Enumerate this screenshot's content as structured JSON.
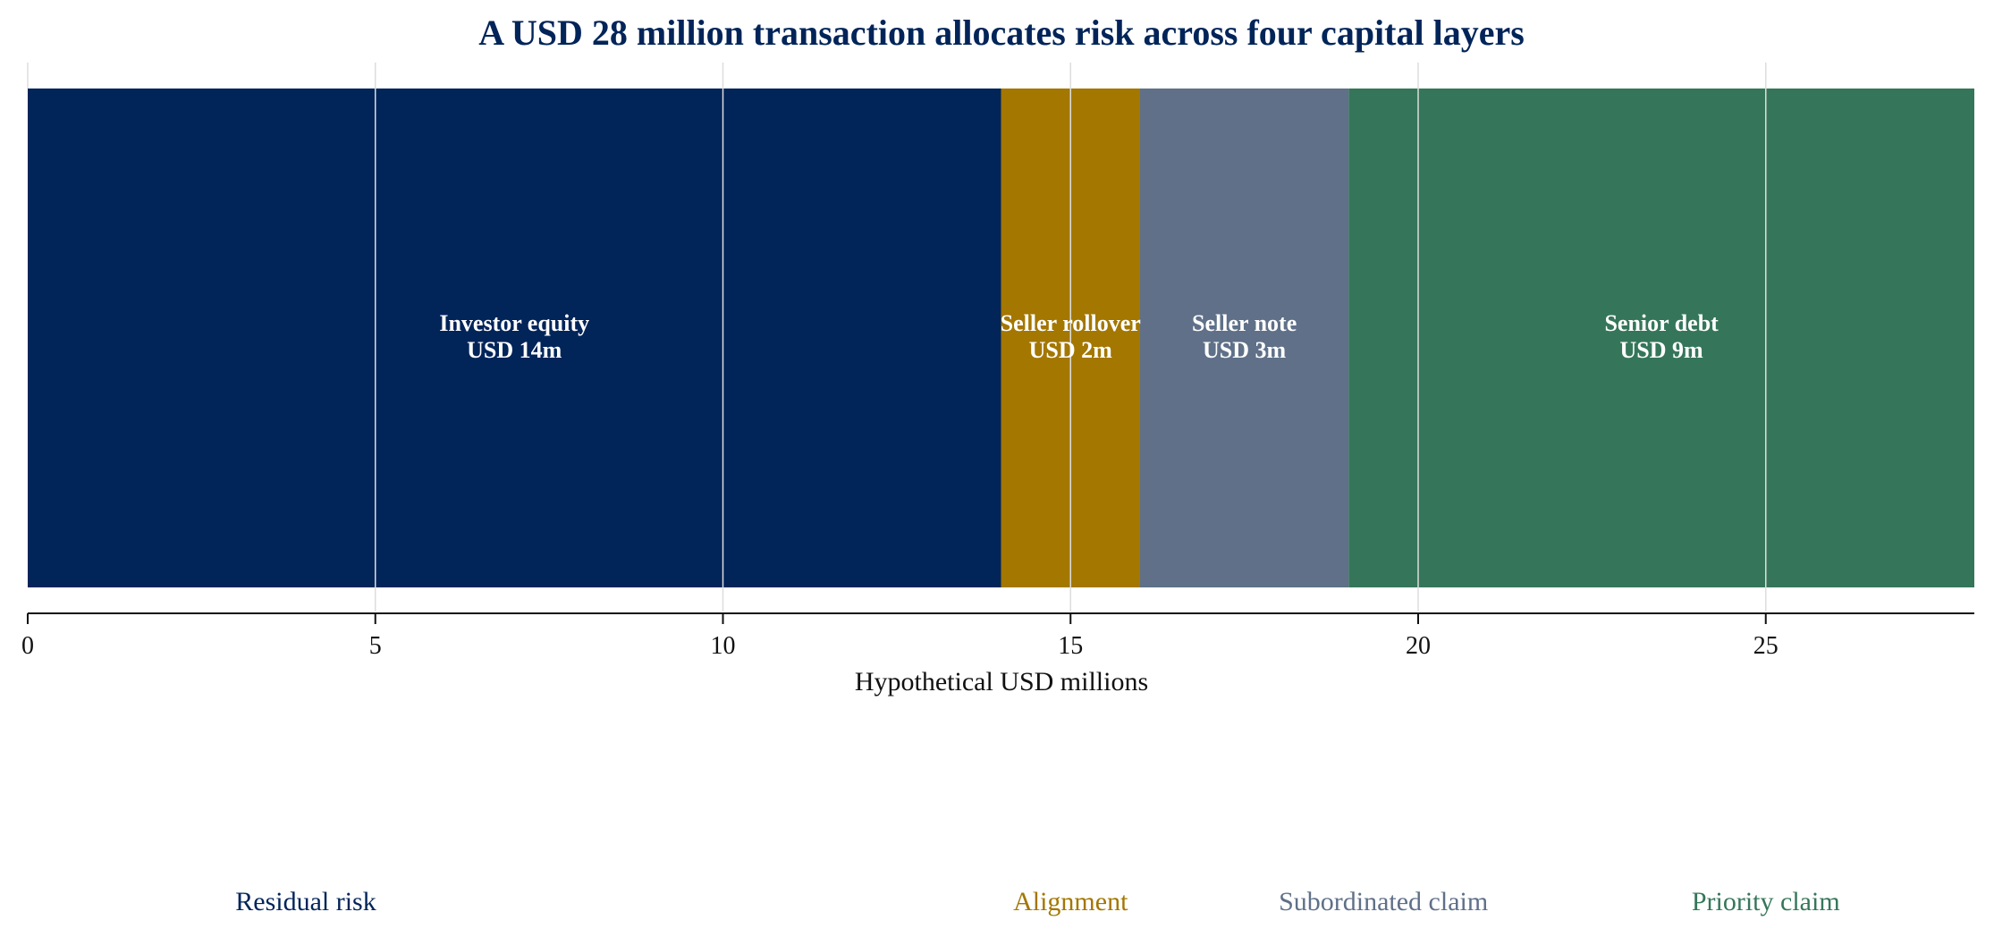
{
  "chart_data": {
    "type": "bar",
    "orientation": "horizontal-stacked",
    "title": "A USD 28 million transaction allocates risk across four capital layers",
    "xlabel": "Hypothetical USD millions",
    "ylabel": "",
    "xlim": [
      0,
      28
    ],
    "xticks": [
      0,
      5,
      10,
      15,
      20,
      25
    ],
    "grid": "vertical",
    "legend": "bottom",
    "series": [
      {
        "name": "Investor equity",
        "value_label": "USD 14m",
        "start": 0,
        "value": 14,
        "color": "#012459",
        "group": "Residual risk"
      },
      {
        "name": "Seller rollover",
        "value_label": "USD 2m",
        "start": 14,
        "value": 2,
        "color": "#a37700",
        "group": "Alignment"
      },
      {
        "name": "Seller note",
        "value_label": "USD 3m",
        "start": 16,
        "value": 3,
        "color": "#5f7088",
        "group": "Subordinated claim"
      },
      {
        "name": "Senior debt",
        "value_label": "USD 9m",
        "start": 19,
        "value": 9,
        "color": "#35765a",
        "group": "Priority claim"
      }
    ],
    "annotations": [
      {
        "text": "Residual risk",
        "x": 4,
        "color": "#012459"
      },
      {
        "text": "Alignment",
        "x": 15,
        "color": "#a37700"
      },
      {
        "text": "Subordinated claim",
        "x": 19.5,
        "color": "#5f7088"
      },
      {
        "text": "Priority claim",
        "x": 25,
        "color": "#35765a"
      }
    ]
  }
}
